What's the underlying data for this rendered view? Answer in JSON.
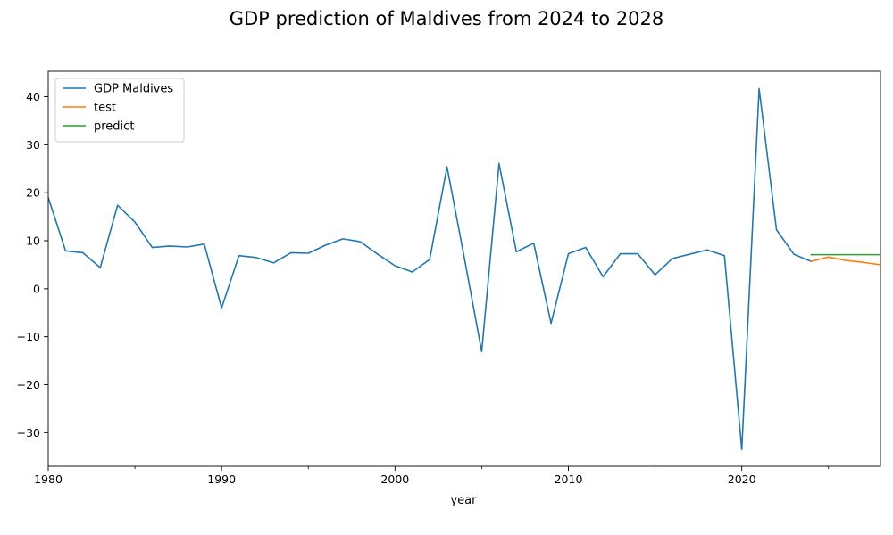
{
  "chart_data": {
    "type": "line",
    "title": "GDP prediction of Maldives from 2024 to 2028",
    "xlabel": "year",
    "ylabel": "",
    "xlim": [
      1980,
      2028
    ],
    "ylim": [
      -37,
      45.3
    ],
    "x_major_ticks": [
      1980,
      1990,
      2000,
      2010,
      2020
    ],
    "x_minor_ticks": [
      1985,
      1995,
      2005,
      2015,
      2025
    ],
    "y_ticks": [
      -30,
      -20,
      -10,
      0,
      10,
      20,
      30,
      40
    ],
    "grid": false,
    "legend_position": "top-left",
    "series": [
      {
        "name": "GDP Maldives",
        "color": "#1f77b4",
        "x": [
          1980,
          1981,
          1982,
          1983,
          1984,
          1985,
          1986,
          1987,
          1988,
          1989,
          1990,
          1991,
          1992,
          1993,
          1994,
          1995,
          1996,
          1997,
          1998,
          1999,
          2000,
          2001,
          2002,
          2003,
          2004,
          2005,
          2006,
          2007,
          2008,
          2009,
          2010,
          2011,
          2012,
          2013,
          2014,
          2015,
          2016,
          2017,
          2018,
          2019,
          2020,
          2021,
          2022,
          2023,
          2024
        ],
        "y": [
          19.0,
          7.9,
          7.5,
          4.4,
          17.4,
          13.9,
          8.6,
          8.9,
          8.7,
          9.3,
          -4.0,
          6.9,
          6.5,
          5.4,
          7.5,
          7.4,
          9.1,
          10.4,
          9.8,
          7.2,
          4.8,
          3.5,
          6.1,
          25.4,
          6.4,
          -13.1,
          26.1,
          7.7,
          9.5,
          -7.2,
          7.3,
          8.6,
          2.5,
          7.3,
          7.3,
          2.9,
          6.3,
          7.2,
          8.1,
          6.9,
          -33.5,
          41.7,
          12.3,
          7.2,
          5.7
        ]
      },
      {
        "name": "test",
        "color": "#ff7f0e",
        "x": [
          2024,
          2025,
          2026,
          2027,
          2028
        ],
        "y": [
          5.7,
          6.6,
          5.9,
          5.5,
          5.0
        ]
      },
      {
        "name": "predict",
        "color": "#2ca02c",
        "x": [
          2024,
          2025,
          2026,
          2027,
          2028
        ],
        "y": [
          7.1,
          7.1,
          7.1,
          7.1,
          7.1
        ]
      }
    ]
  }
}
